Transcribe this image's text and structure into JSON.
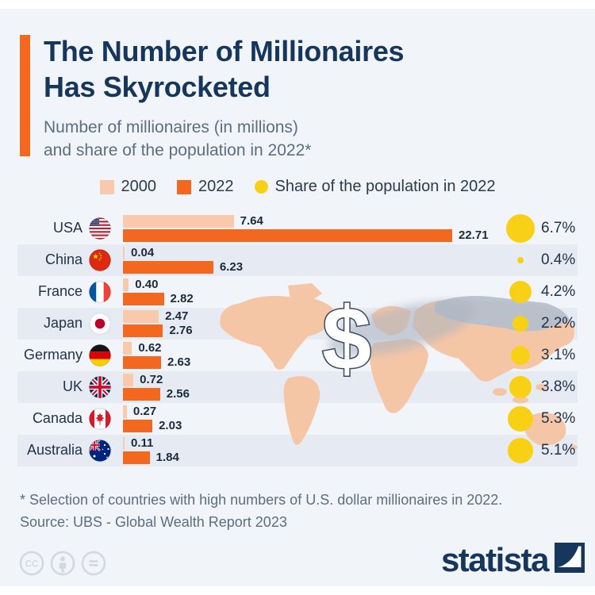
{
  "page": {
    "background": "#f1f4f9",
    "frame_color": "#ffffff"
  },
  "header": {
    "accent_color": "#F4671F",
    "title_line1": "The Number of Millionaires",
    "title_line2": "Has Skyrocketed",
    "subtitle_line1": "Number of millionaires (in millions)",
    "subtitle_line2": "and share of the population in 2022*",
    "title_color": "#16365C"
  },
  "legend": [
    {
      "label": "2000",
      "shape": "square",
      "color": "#FAC9AB"
    },
    {
      "label": "2022",
      "shape": "square",
      "color": "#F4671F"
    },
    {
      "label": "Share of the population in 2022",
      "shape": "circle",
      "color": "#F8D117"
    }
  ],
  "chart_data": {
    "type": "bar",
    "orientation": "horizontal",
    "title": "The Number of Millionaires Has Skyrocketed",
    "subtitle": "Number of millionaires (in millions) and share of the population in 2022*",
    "unit": "millions of millionaires",
    "categories": [
      "USA",
      "China",
      "France",
      "Japan",
      "Germany",
      "UK",
      "Canada",
      "Australia"
    ],
    "flag_codes": [
      "us",
      "cn",
      "fr",
      "jp",
      "de",
      "gb",
      "ca",
      "au"
    ],
    "series": [
      {
        "name": "2000",
        "color": "#FAC9AB",
        "values": [
          7.64,
          0.04,
          0.4,
          2.47,
          0.62,
          0.72,
          0.27,
          0.11
        ]
      },
      {
        "name": "2022",
        "color": "#F4671F",
        "values": [
          22.71,
          6.23,
          2.82,
          2.76,
          2.63,
          2.56,
          2.03,
          1.84
        ]
      }
    ],
    "bubble_series": {
      "name": "Share of the population in 2022",
      "color": "#F8D117",
      "unit": "%",
      "values": [
        6.7,
        0.4,
        4.2,
        2.2,
        3.1,
        3.8,
        5.3,
        5.1
      ]
    },
    "value_label_format": "0.00",
    "xlim": [
      0,
      24
    ],
    "grid": false,
    "legend_position": "top"
  },
  "graphics": {
    "dollar_symbol": "$",
    "map_land_color": "#F5C6A6",
    "map_gray_color": "#B6C0CB",
    "map_shadow_color": "#AAB4C1"
  },
  "footnote_line1": "* Selection of countries with high numbers of U.S. dollar millionaires in 2022.",
  "footnote_line2": "Source: UBS - Global Wealth Report 2023",
  "footer": {
    "logo_text": "statista",
    "logo_color": "#16365C",
    "license_icons": [
      "cc-icon",
      "attribution-icon",
      "nd-icon"
    ]
  }
}
